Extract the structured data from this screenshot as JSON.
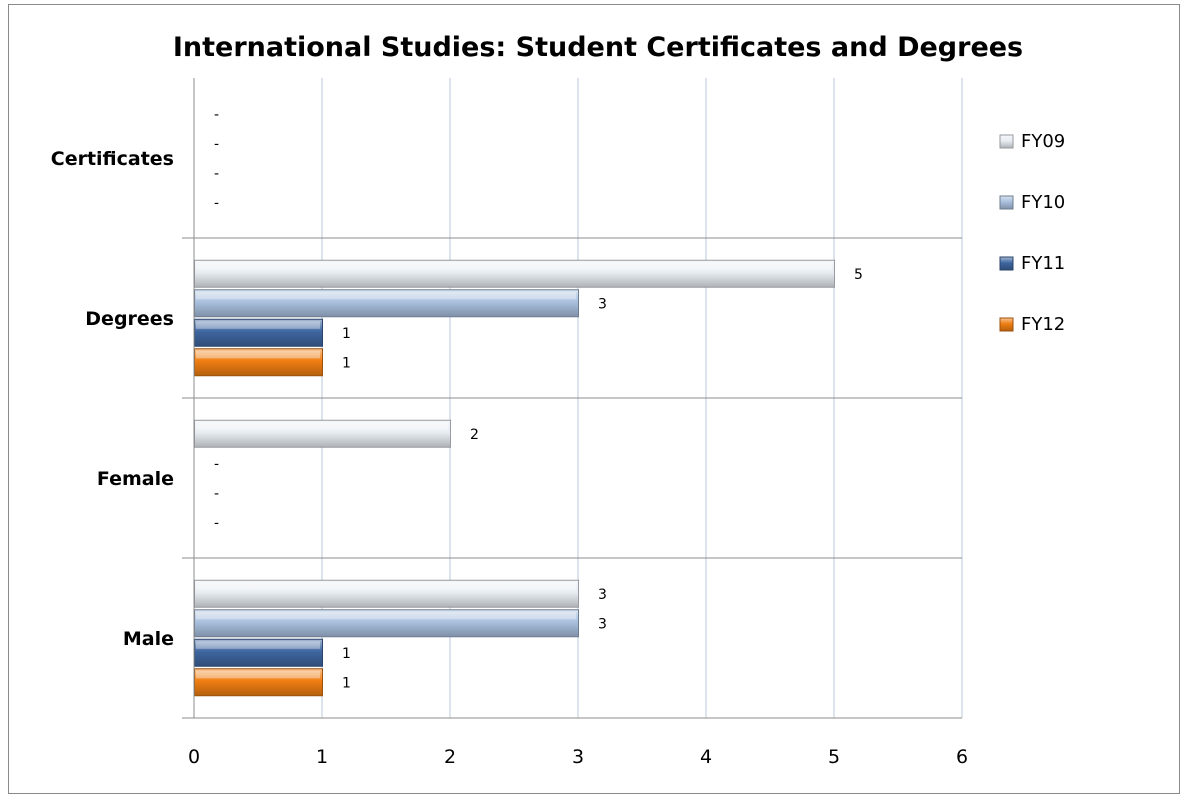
{
  "chart_data": {
    "type": "bar",
    "orientation": "horizontal",
    "title": "International Studies: Student Certificates and Degrees",
    "categories": [
      "Certificates",
      "Degrees",
      "Female",
      "Male"
    ],
    "series": [
      {
        "name": "FY09",
        "values": [
          null,
          5,
          2,
          3
        ],
        "color": "#e8edf3"
      },
      {
        "name": "FY10",
        "values": [
          null,
          3,
          null,
          3
        ],
        "color": "#a9c0de"
      },
      {
        "name": "FY11",
        "values": [
          null,
          1,
          null,
          1
        ],
        "color": "#3e66a0"
      },
      {
        "name": "FY12",
        "values": [
          null,
          1,
          null,
          1
        ],
        "color": "#f07e12"
      }
    ],
    "missing_label": "-",
    "xlim": [
      0,
      6
    ],
    "xticks": [
      0,
      1,
      2,
      3,
      4,
      5,
      6
    ],
    "grid": true,
    "legend": "right"
  }
}
